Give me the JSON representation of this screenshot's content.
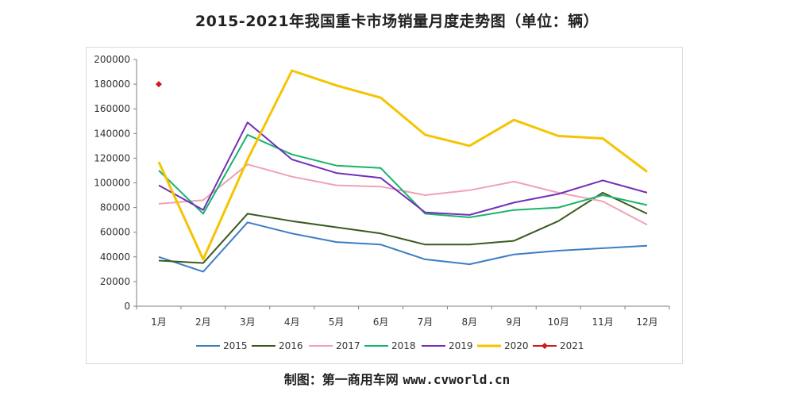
{
  "title": "2015-2021年我国重卡市场销量月度走势图（单位：辆）",
  "credit": {
    "label": "制图：第一商用车网",
    "url": "www.cvworld.cn"
  },
  "chart_data": {
    "type": "line",
    "categories": [
      "1月",
      "2月",
      "3月",
      "4月",
      "5月",
      "6月",
      "7月",
      "8月",
      "9月",
      "10月",
      "11月",
      "12月"
    ],
    "ylim": [
      0,
      200000
    ],
    "yticks": [
      0,
      20000,
      40000,
      60000,
      80000,
      100000,
      120000,
      140000,
      160000,
      180000,
      200000
    ],
    "legend_position": "bottom",
    "grid": false,
    "series": [
      {
        "name": "2015",
        "color": "#3c7dc4",
        "values": [
          40000,
          28000,
          68000,
          59000,
          52000,
          50000,
          38000,
          34000,
          42000,
          45000,
          47000,
          49000
        ]
      },
      {
        "name": "2016",
        "color": "#3a5a1e",
        "values": [
          37000,
          35000,
          75000,
          69000,
          64000,
          59000,
          50000,
          50000,
          53000,
          69000,
          92000,
          75000
        ]
      },
      {
        "name": "2017",
        "color": "#f0a2b3",
        "values": [
          83000,
          86000,
          115000,
          105000,
          98000,
          97000,
          90000,
          94000,
          101000,
          92000,
          85000,
          66000
        ]
      },
      {
        "name": "2018",
        "color": "#19b36b",
        "values": [
          110000,
          75000,
          139000,
          123000,
          114000,
          112000,
          75000,
          72000,
          78000,
          80000,
          90000,
          82000
        ]
      },
      {
        "name": "2019",
        "color": "#7330b8",
        "values": [
          98000,
          78000,
          149000,
          119000,
          108000,
          104000,
          76000,
          74000,
          84000,
          91000,
          102000,
          92000
        ]
      },
      {
        "name": "2020",
        "color": "#f5c400",
        "values": [
          117000,
          38000,
          119000,
          191000,
          179000,
          169000,
          139000,
          130000,
          151000,
          138000,
          136000,
          109000
        ]
      },
      {
        "name": "2021",
        "color": "#d21a1a",
        "values": [
          180000,
          null,
          null,
          null,
          null,
          null,
          null,
          null,
          null,
          null,
          null,
          null
        ],
        "marker": "diamond"
      }
    ]
  }
}
